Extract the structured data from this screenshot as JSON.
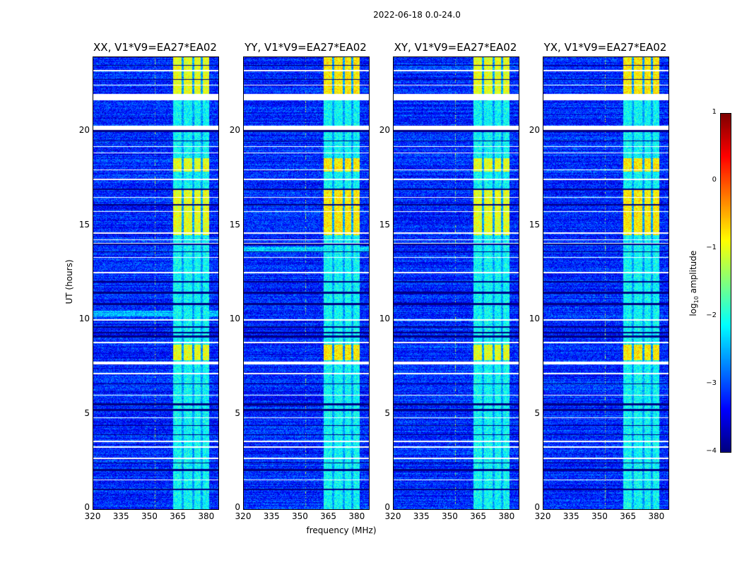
{
  "suptitle": "2022-06-18 0.0-24.0",
  "chart_data": {
    "type": "heatmap",
    "title": "2022-06-18 0.0-24.0",
    "xlabel": "frequency (MHz)",
    "ylabel": "UT (hours)",
    "xlim": [
      320,
      386
    ],
    "ylim": [
      0,
      24
    ],
    "xticks": [
      "320",
      "335",
      "350",
      "365",
      "380"
    ],
    "yticks": [
      "0",
      "5",
      "10",
      "15",
      "20"
    ],
    "panels": [
      {
        "title": "XX, V1*V9=EA27*EA02"
      },
      {
        "title": "YY, V1*V9=EA27*EA02"
      },
      {
        "title": "XY, V1*V9=EA27*EA02"
      },
      {
        "title": "YX, V1*V9=EA27*EA02"
      }
    ],
    "colorbar": {
      "label": "log10 amplitude",
      "label_main": "log",
      "label_sub": "10",
      "label_rest": " amplitude",
      "range": [
        -4,
        1
      ],
      "ticks": [
        "1",
        "0",
        "−1",
        "−2",
        "−3",
        "−4"
      ],
      "colormap": "jet"
    },
    "background_level": -3.2,
    "rfi_band_mhz": [
      362,
      381
    ],
    "rfi_subchannels_mhz": [
      [
        362,
        366.5
      ],
      [
        367.5,
        372
      ],
      [
        373,
        376.5
      ],
      [
        377.5,
        381
      ]
    ],
    "rfi_bright_hours": [
      [
        22.0,
        24.0
      ],
      [
        17.9,
        18.6
      ],
      [
        14.5,
        17.0
      ],
      [
        7.9,
        8.7
      ]
    ],
    "rfi_bright_level": -0.8,
    "rfi_quiet_level": -2.4,
    "flagged_hours": [
      [
        21.65,
        22.0
      ],
      [
        20.1,
        20.3
      ],
      [
        7.65,
        7.82
      ],
      [
        23.2,
        23.27
      ],
      [
        22.45,
        22.5
      ],
      [
        19.2,
        19.25
      ],
      [
        18.85,
        18.9
      ],
      [
        17.95,
        18.0
      ],
      [
        17.45,
        17.5
      ],
      [
        16.5,
        16.55
      ],
      [
        15.75,
        15.8
      ],
      [
        14.6,
        14.65
      ],
      [
        14.25,
        14.3
      ],
      [
        14.05,
        14.1
      ],
      [
        13.3,
        13.35
      ],
      [
        12.5,
        12.55
      ],
      [
        10.0,
        10.05
      ],
      [
        8.8,
        8.85
      ],
      [
        7.15,
        7.2
      ],
      [
        6.0,
        6.05
      ],
      [
        4.8,
        4.85
      ],
      [
        3.55,
        3.6
      ],
      [
        3.25,
        3.3
      ],
      [
        2.65,
        2.7
      ],
      [
        1.5,
        1.55
      ]
    ],
    "dark_hours": [
      [
        23.5,
        23.55
      ],
      [
        22.75,
        22.8
      ],
      [
        20.0,
        20.1
      ],
      [
        19.5,
        19.55
      ],
      [
        16.9,
        17.0
      ],
      [
        16.1,
        16.15
      ],
      [
        14.0,
        14.05
      ],
      [
        13.6,
        13.65
      ],
      [
        12.0,
        12.08
      ],
      [
        11.4,
        11.5
      ],
      [
        10.8,
        10.9
      ],
      [
        9.6,
        9.7
      ],
      [
        9.3,
        9.4
      ],
      [
        9.1,
        9.2
      ],
      [
        6.6,
        6.65
      ],
      [
        5.5,
        5.6
      ],
      [
        5.2,
        5.3
      ],
      [
        4.4,
        4.45
      ],
      [
        3.9,
        3.95
      ],
      [
        2.4,
        2.45
      ],
      [
        2.0,
        2.1
      ],
      [
        1.0,
        1.05
      ]
    ]
  }
}
